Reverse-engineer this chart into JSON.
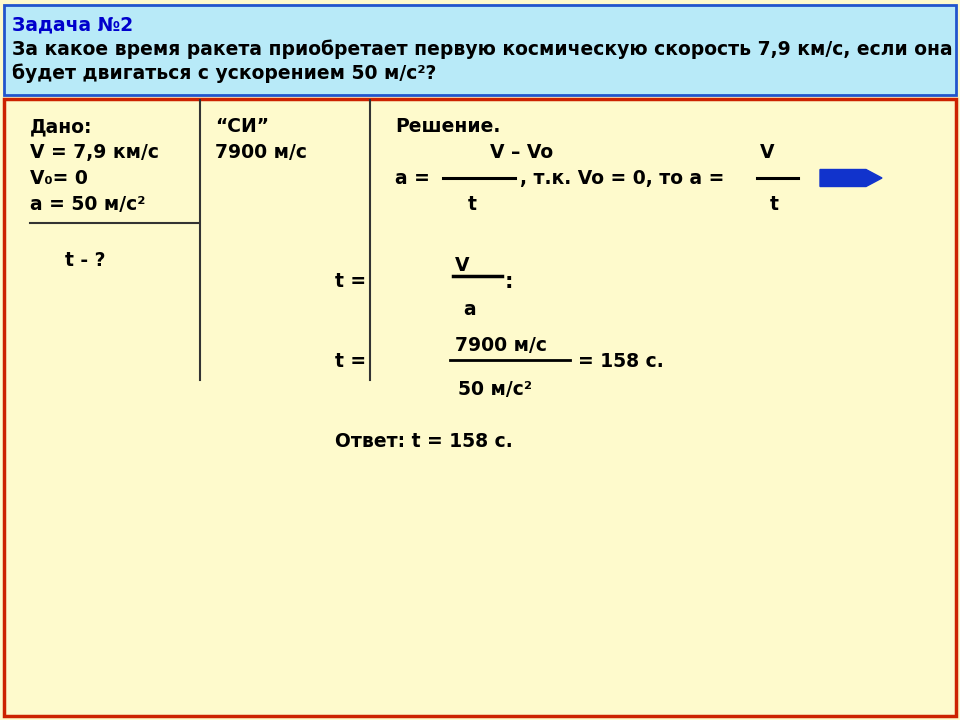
{
  "header_bg": "#b8eaf8",
  "header_border": "#2255cc",
  "body_bg": "#fefacc",
  "body_border": "#cc2200",
  "title_color": "#0000cc",
  "title_text": "Задача №2",
  "problem_line1": "За какое время ракета приобретает первую космическую скорость 7,9 км/с, если она",
  "problem_line2": "будет двигаться с ускорением 50 м/с²?"
}
